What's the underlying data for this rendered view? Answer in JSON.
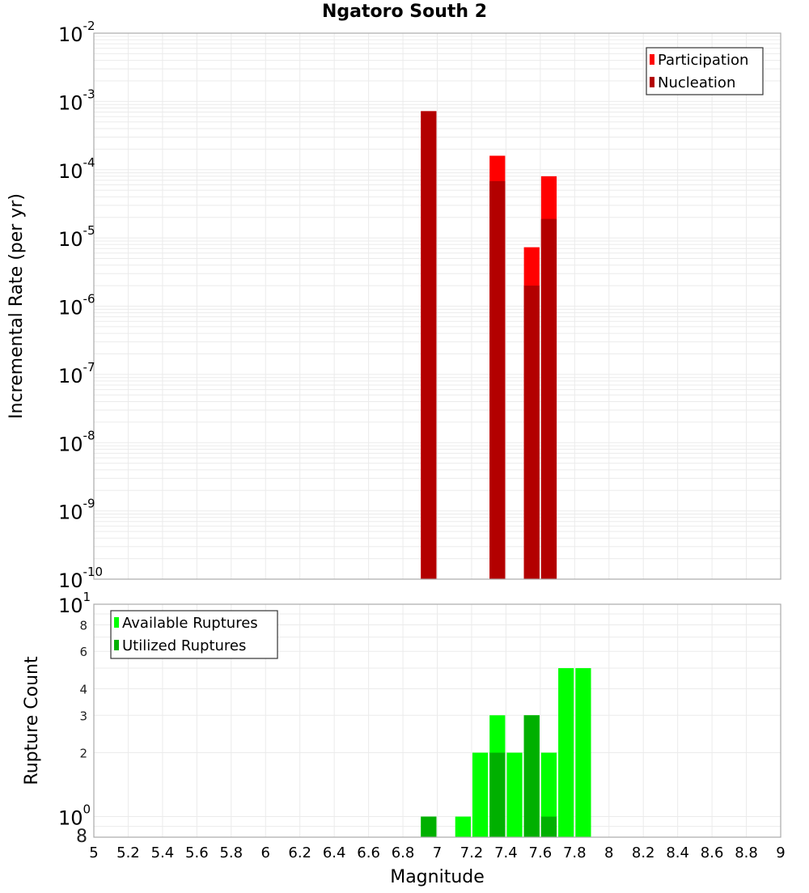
{
  "chart_data": [
    {
      "type": "bar",
      "title": "Ngatoro South 2",
      "xlabel": "Magnitude",
      "ylabel": "Incremental Rate (per yr)",
      "yscale": "log",
      "ylim": [
        1e-10,
        0.01
      ],
      "xlim": [
        5,
        9
      ],
      "grid": true,
      "legend_position": "upper right",
      "bin_width": 0.1,
      "y_tick_labels": [
        {
          "base": "10",
          "exp": "-2",
          "value": 0.01
        },
        {
          "base": "10",
          "exp": "-3",
          "value": 0.001
        },
        {
          "base": "10",
          "exp": "-4",
          "value": 0.0001
        },
        {
          "base": "10",
          "exp": "-5",
          "value": 1e-05
        },
        {
          "base": "10",
          "exp": "-6",
          "value": 1e-06
        },
        {
          "base": "10",
          "exp": "-7",
          "value": 1e-07
        },
        {
          "base": "10",
          "exp": "-8",
          "value": 1e-08
        },
        {
          "base": "10",
          "exp": "-9",
          "value": 1e-09
        },
        {
          "base": "10",
          "exp": "-10",
          "value": 1e-10
        }
      ],
      "x": [
        6.95,
        7.35,
        7.55,
        7.65
      ],
      "series": [
        {
          "name": "Participation",
          "color": "#ff0000",
          "values": [
            0.00072,
            0.00016,
            7.3e-06,
            8e-05
          ]
        },
        {
          "name": "Nucleation",
          "color": "#b30000",
          "values": [
            0.00072,
            6.8e-05,
            2e-06,
            1.9e-05
          ]
        }
      ]
    },
    {
      "type": "bar",
      "title": "",
      "xlabel": "Magnitude",
      "ylabel": "Rupture Count",
      "yscale": "log",
      "ylim": [
        0.8,
        10
      ],
      "xlim": [
        5,
        9
      ],
      "grid": true,
      "legend_position": "upper left",
      "bin_width": 0.1,
      "y_tick_labels": [
        {
          "base": "10",
          "exp": "1",
          "value": 10,
          "major": true
        },
        {
          "label": "8",
          "value": 8
        },
        {
          "label": "6",
          "value": 6
        },
        {
          "label": "4",
          "value": 4
        },
        {
          "label": "3",
          "value": 3
        },
        {
          "label": "2",
          "value": 2
        },
        {
          "base": "10",
          "exp": "0",
          "value": 1,
          "major": true
        },
        {
          "label": "8",
          "value": 0.8,
          "major": true
        }
      ],
      "x_tick_labels": [
        "5",
        "5.2",
        "5.4",
        "5.6",
        "5.8",
        "6",
        "6.2",
        "6.4",
        "6.6",
        "6.8",
        "7",
        "7.2",
        "7.4",
        "7.6",
        "7.8",
        "8",
        "8.2",
        "8.4",
        "8.6",
        "8.8",
        "9"
      ],
      "x": [
        6.95,
        7.15,
        7.25,
        7.35,
        7.45,
        7.55,
        7.65,
        7.75,
        7.85
      ],
      "series": [
        {
          "name": "Available Ruptures",
          "color": "#00ff00",
          "values": [
            1,
            1,
            2,
            3,
            2,
            3,
            2,
            5,
            5
          ]
        },
        {
          "name": "Utilized Ruptures",
          "color": "#00b000",
          "values": [
            1,
            0,
            0,
            2,
            0,
            3,
            1,
            0,
            0
          ]
        }
      ]
    }
  ]
}
